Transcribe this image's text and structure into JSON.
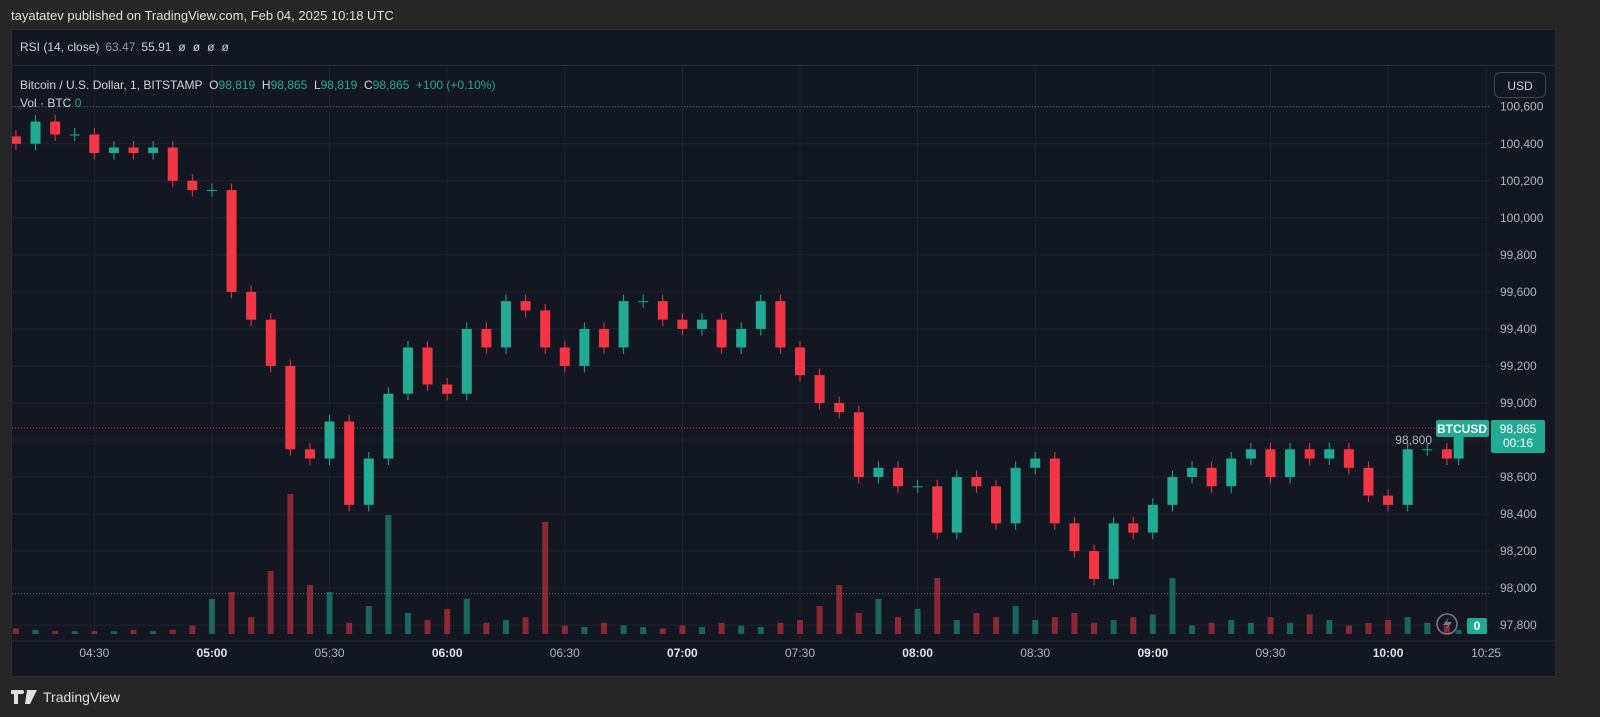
{
  "header": {
    "published": "tayatatev published on TradingView.com, Feb 04, 2025 10:18 UTC"
  },
  "rsi": {
    "label": "RSI (14, close)",
    "value1": "63.47",
    "value2": "55.91",
    "nulls": [
      "ø",
      "ø",
      "ø",
      "ø"
    ]
  },
  "legend": {
    "symbol": "Bitcoin / U.S. Dollar, 1, BITSTAMP",
    "o_label": "O",
    "o": "98,819",
    "h_label": "H",
    "h": "98,865",
    "l_label": "L",
    "l": "98,819",
    "c_label": "C",
    "c": "98,865",
    "change": "+100 (+0.10%)",
    "vol_label": "Vol · BTC",
    "vol_value": "0"
  },
  "currency_button": "USD",
  "price_tag": {
    "symbol": "BTCUSD",
    "price": "98,865",
    "countdown": "00:16",
    "vol_tag": "0"
  },
  "footer": {
    "brand": "TradingView"
  },
  "colors": {
    "up": "#22ab94",
    "down": "#f23645",
    "background": "#131722",
    "grid": "#1f2330",
    "tag": "#22ab94"
  },
  "chart_data": {
    "type": "candlestick",
    "interval_shown": "5-minute summary of 1-minute candles",
    "y_ticks": [
      "100,600",
      "100,400",
      "100,200",
      "100,000",
      "99,800",
      "99,600",
      "99,400",
      "99,200",
      "99,000",
      "98,800",
      "98,600",
      "98,400",
      "98,200",
      "98,000",
      "97,800"
    ],
    "y_tick_values": [
      100600,
      100400,
      100200,
      100000,
      99800,
      99600,
      99400,
      99200,
      99000,
      98800,
      98600,
      98400,
      98200,
      98000,
      97800
    ],
    "x_ticks": [
      {
        "label": "04:30",
        "t": "04:30",
        "bold": false
      },
      {
        "label": "05:00",
        "t": "05:00",
        "bold": true
      },
      {
        "label": "05:30",
        "t": "05:30",
        "bold": false
      },
      {
        "label": "06:00",
        "t": "06:00",
        "bold": true
      },
      {
        "label": "06:30",
        "t": "06:30",
        "bold": false
      },
      {
        "label": "07:00",
        "t": "07:00",
        "bold": true
      },
      {
        "label": "07:30",
        "t": "07:30",
        "bold": false
      },
      {
        "label": "08:00",
        "t": "08:00",
        "bold": true
      },
      {
        "label": "08:30",
        "t": "08:30",
        "bold": false
      },
      {
        "label": "09:00",
        "t": "09:00",
        "bold": true
      },
      {
        "label": "09:30",
        "t": "09:30",
        "bold": false
      },
      {
        "label": "10:00",
        "t": "10:00",
        "bold": true
      },
      {
        "label": "10:25",
        "t": "10:25",
        "bold": false
      }
    ],
    "ylim": [
      97720,
      100820
    ],
    "xlim": [
      "04:09",
      "10:26"
    ],
    "last_price": 98865,
    "high_line": 100600,
    "low_line": 97970,
    "times": [
      "04:10",
      "04:15",
      "04:20",
      "04:25",
      "04:30",
      "04:35",
      "04:40",
      "04:45",
      "04:50",
      "04:55",
      "05:00",
      "05:05",
      "05:10",
      "05:15",
      "05:20",
      "05:25",
      "05:30",
      "05:35",
      "05:40",
      "05:45",
      "05:50",
      "05:55",
      "06:00",
      "06:05",
      "06:10",
      "06:15",
      "06:20",
      "06:25",
      "06:30",
      "06:35",
      "06:40",
      "06:45",
      "06:50",
      "06:55",
      "07:00",
      "07:05",
      "07:10",
      "07:15",
      "07:20",
      "07:25",
      "07:30",
      "07:35",
      "07:40",
      "07:45",
      "07:50",
      "07:55",
      "08:00",
      "08:05",
      "08:10",
      "08:15",
      "08:20",
      "08:25",
      "08:30",
      "08:35",
      "08:40",
      "08:45",
      "08:50",
      "08:55",
      "09:00",
      "09:05",
      "09:10",
      "09:15",
      "09:20",
      "09:25",
      "09:30",
      "09:35",
      "09:40",
      "09:45",
      "09:50",
      "09:55",
      "10:00",
      "10:05",
      "10:10",
      "10:15",
      "10:18"
    ],
    "close": [
      100400,
      100520,
      100450,
      100450,
      100350,
      100380,
      100350,
      100380,
      100200,
      100150,
      100150,
      99600,
      99450,
      99200,
      98750,
      98700,
      98900,
      98450,
      98700,
      99050,
      99300,
      99100,
      99050,
      99400,
      99300,
      99550,
      99500,
      99300,
      99200,
      99400,
      99300,
      99550,
      99550,
      99450,
      99400,
      99450,
      99300,
      99400,
      99550,
      99300,
      99150,
      99000,
      98950,
      98600,
      98650,
      98550,
      98550,
      98300,
      98600,
      98550,
      98350,
      98650,
      98700,
      98350,
      98200,
      98050,
      98350,
      98300,
      98450,
      98600,
      98650,
      98550,
      98700,
      98750,
      98600,
      98750,
      98700,
      98750,
      98650,
      98500,
      98450,
      98750,
      98750,
      98700,
      98865
    ],
    "volume_relative": [
      4,
      3,
      2,
      2,
      2,
      2,
      3,
      2,
      3,
      6,
      25,
      30,
      12,
      45,
      100,
      35,
      30,
      8,
      20,
      85,
      15,
      10,
      18,
      25,
      8,
      10,
      12,
      80,
      6,
      5,
      8,
      6,
      5,
      4,
      6,
      5,
      8,
      6,
      5,
      8,
      10,
      20,
      35,
      15,
      25,
      12,
      18,
      40,
      10,
      15,
      12,
      20,
      10,
      12,
      15,
      8,
      10,
      12,
      14,
      40,
      6,
      8,
      10,
      8,
      12,
      8,
      14,
      10,
      6,
      8,
      10,
      12,
      8,
      6,
      3
    ]
  }
}
